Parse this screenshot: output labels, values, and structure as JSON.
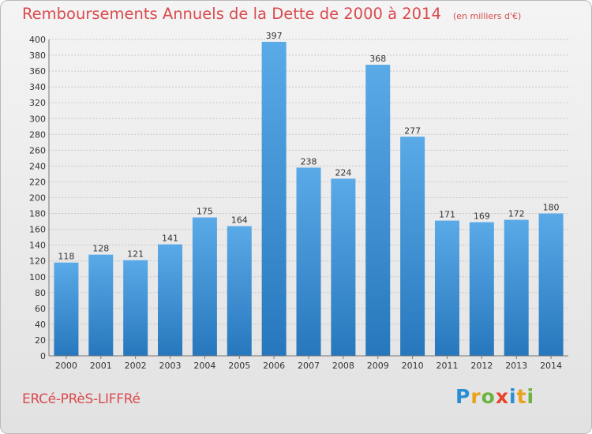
{
  "chart_data": {
    "type": "bar",
    "title": "Remboursements Annuels de la Dette de 2000 à 2014",
    "subtitle": "(en milliers d'€)",
    "categories": [
      "2000",
      "2001",
      "2002",
      "2003",
      "2004",
      "2005",
      "2006",
      "2007",
      "2008",
      "2009",
      "2010",
      "2011",
      "2012",
      "2013",
      "2014"
    ],
    "values": [
      118,
      128,
      121,
      141,
      175,
      164,
      397,
      238,
      224,
      368,
      277,
      171,
      169,
      172,
      180
    ],
    "ylim": [
      0,
      400
    ],
    "yticks": [
      0,
      20,
      40,
      60,
      80,
      100,
      120,
      140,
      160,
      180,
      200,
      220,
      240,
      260,
      280,
      300,
      320,
      340,
      360,
      380,
      400
    ],
    "grid": true,
    "bar_color": "#4a9ee0",
    "bar_color_dark": "#2777bd"
  },
  "commune": "ERCé-PRèS-LIFFRé",
  "logo": {
    "text": "Proxiti",
    "colors": [
      "#2a8ed6",
      "#e8a21a",
      "#6db33f",
      "#e8432c",
      "#2a8ed6",
      "#e8a21a",
      "#6db33f"
    ]
  }
}
